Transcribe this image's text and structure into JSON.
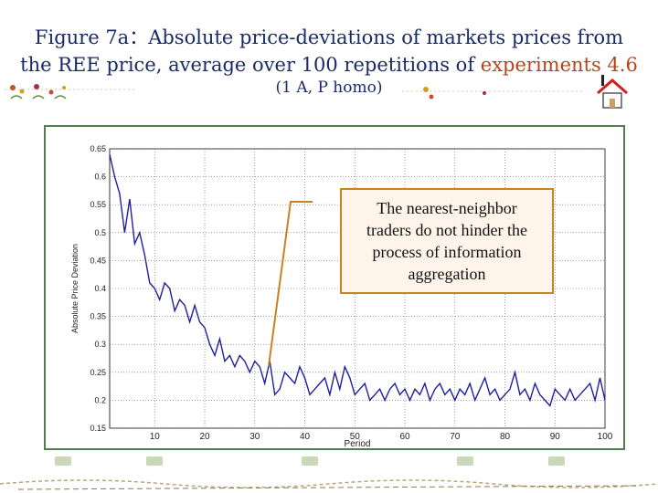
{
  "slide": {
    "title_line1": "Figure 7a：Absolute price-deviations of markets  prices from",
    "title_line2_prefix": "the REE price, average over 100 repetitions of ",
    "title_line2_highlight": "experiments 4.6",
    "subtitle": "(1 A, P homo)"
  },
  "callout": {
    "lines": [
      "The nearest-neighbor",
      "traders do not hinder the",
      "process of information",
      "aggregation"
    ]
  },
  "colors": {
    "title": "#1a2a66",
    "highlight": "#b8431a",
    "line": "#1f1fa0",
    "callout_border": "#c9821f",
    "frame": "#4f7f4f"
  },
  "chart_data": {
    "type": "line",
    "title": "",
    "xlabel": "Period",
    "ylabel": "Absolute Price Deviation",
    "xlim": [
      1,
      100
    ],
    "ylim": [
      0.15,
      0.65
    ],
    "xticks": [
      10,
      20,
      30,
      40,
      50,
      60,
      70,
      80,
      90,
      100
    ],
    "yticks": [
      0.15,
      0.2,
      0.25,
      0.3,
      0.35,
      0.4,
      0.45,
      0.5,
      0.55,
      0.6,
      0.65
    ],
    "ytick_labels": [
      "0.15",
      "0.2",
      "0.25",
      "0.3",
      "0.35",
      "0.4",
      "0.45",
      "0.5",
      "0.55",
      "0.6",
      "0.65"
    ],
    "grid": true,
    "series": [
      {
        "x": [
          1,
          2,
          3,
          4,
          5,
          6,
          7,
          8,
          9,
          10,
          11,
          12,
          13,
          14,
          15,
          16,
          17,
          18,
          19,
          20,
          21,
          22,
          23,
          24,
          25,
          26,
          27,
          28,
          29,
          30,
          31,
          32,
          33,
          34,
          35,
          36,
          37,
          38,
          39,
          40,
          41,
          42,
          43,
          44,
          45,
          46,
          47,
          48,
          49,
          50,
          51,
          52,
          53,
          54,
          55,
          56,
          57,
          58,
          59,
          60,
          61,
          62,
          63,
          64,
          65,
          66,
          67,
          68,
          69,
          70,
          71,
          72,
          73,
          74,
          75,
          76,
          77,
          78,
          79,
          80,
          81,
          82,
          83,
          84,
          85,
          86,
          87,
          88,
          89,
          90,
          91,
          92,
          93,
          94,
          95,
          96,
          97,
          98,
          99,
          100
        ],
        "values": [
          0.64,
          0.6,
          0.57,
          0.5,
          0.56,
          0.48,
          0.5,
          0.46,
          0.41,
          0.4,
          0.38,
          0.41,
          0.4,
          0.36,
          0.38,
          0.37,
          0.34,
          0.37,
          0.34,
          0.33,
          0.3,
          0.28,
          0.31,
          0.27,
          0.28,
          0.26,
          0.28,
          0.27,
          0.25,
          0.27,
          0.26,
          0.23,
          0.27,
          0.21,
          0.22,
          0.25,
          0.24,
          0.23,
          0.26,
          0.24,
          0.21,
          0.22,
          0.23,
          0.24,
          0.21,
          0.25,
          0.22,
          0.26,
          0.24,
          0.21,
          0.22,
          0.23,
          0.2,
          0.21,
          0.22,
          0.2,
          0.22,
          0.23,
          0.21,
          0.22,
          0.2,
          0.22,
          0.21,
          0.23,
          0.2,
          0.22,
          0.23,
          0.21,
          0.22,
          0.2,
          0.22,
          0.21,
          0.23,
          0.2,
          0.22,
          0.24,
          0.21,
          0.22,
          0.2,
          0.21,
          0.22,
          0.25,
          0.21,
          0.22,
          0.2,
          0.23,
          0.21,
          0.2,
          0.19,
          0.22,
          0.21,
          0.2,
          0.22,
          0.2,
          0.21,
          0.22,
          0.23,
          0.2,
          0.24,
          0.2
        ]
      }
    ]
  }
}
